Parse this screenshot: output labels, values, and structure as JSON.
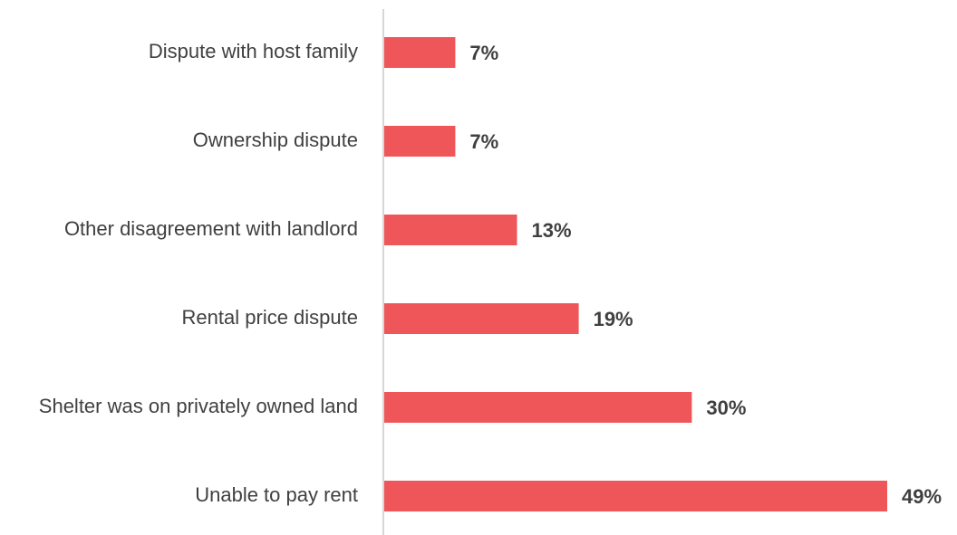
{
  "chart_data": {
    "type": "bar",
    "orientation": "horizontal",
    "categories": [
      "Dispute with host family",
      "Ownership dispute",
      "Other disagreement with landlord",
      "Rental price dispute",
      "Shelter was on privately owned land",
      "Unable to pay rent"
    ],
    "values": [
      7,
      7,
      13,
      19,
      30,
      49
    ],
    "value_labels": [
      "7%",
      "7%",
      "13%",
      "19%",
      "30%",
      "49%"
    ],
    "color": "#ef5659"
  }
}
